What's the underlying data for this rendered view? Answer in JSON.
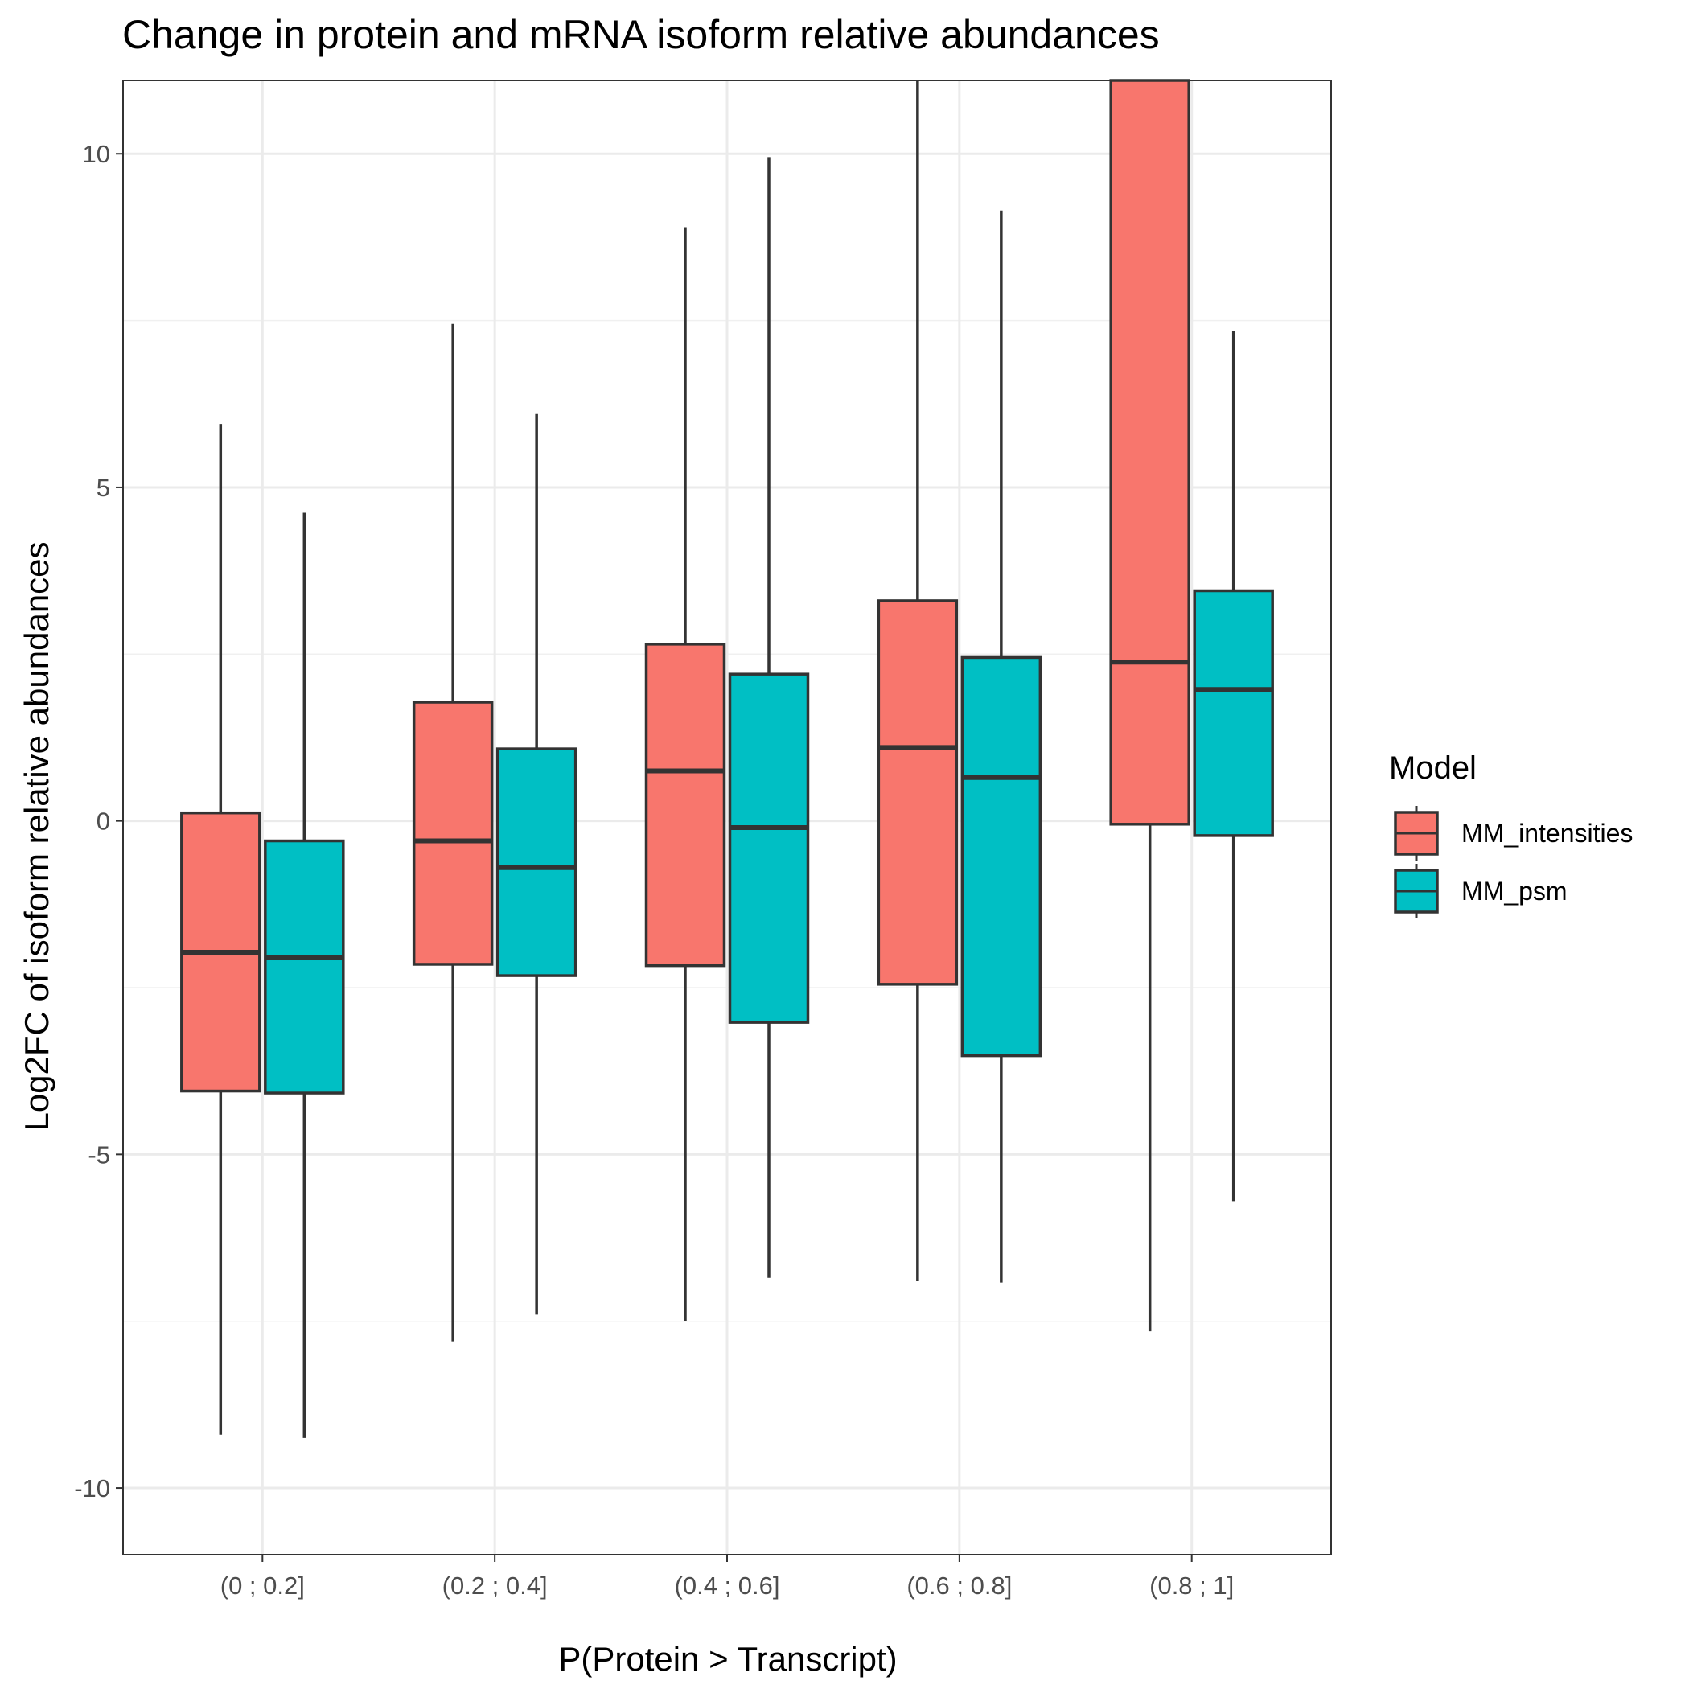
{
  "chart_data": {
    "type": "boxplot",
    "title": "Change in protein and mRNA isoform relative abundances",
    "xlabel": "P(Protein > Transcript)",
    "ylabel": "Log2FC of isoform relative abundances",
    "categories": [
      "(0 ; 0.2]",
      "(0.2 ; 0.4]",
      "(0.4 ; 0.6]",
      "(0.6 ; 0.8]",
      "(0.8 ; 1]"
    ],
    "ylim": [
      -11.0,
      11.1
    ],
    "yticks": [
      -10,
      -5,
      0,
      5,
      10
    ],
    "ytick_labels": [
      "-10",
      "-5",
      "0",
      "5",
      "10"
    ],
    "grid": true,
    "legend": {
      "title": "Model",
      "position": "right"
    },
    "series": [
      {
        "name": "MM_intensities",
        "color": "#F8766D",
        "boxes": [
          {
            "whisker_low": -9.2,
            "q1": -4.05,
            "median": -1.97,
            "q3": 0.12,
            "whisker_high": 5.95
          },
          {
            "whisker_low": -7.8,
            "q1": -2.15,
            "median": -0.3,
            "q3": 1.78,
            "whisker_high": 7.45
          },
          {
            "whisker_low": -7.5,
            "q1": -2.17,
            "median": 0.75,
            "q3": 2.65,
            "whisker_high": 8.9
          },
          {
            "whisker_low": -6.9,
            "q1": -2.45,
            "median": 1.1,
            "q3": 3.3,
            "whisker_high": 11.1
          },
          {
            "whisker_low": -7.65,
            "q1": -0.05,
            "median": 2.38,
            "q3": 11.1,
            "whisker_high": 11.1
          }
        ]
      },
      {
        "name": "MM_psm",
        "color": "#00BFC4",
        "boxes": [
          {
            "whisker_low": -9.25,
            "q1": -4.08,
            "median": -2.05,
            "q3": -0.3,
            "whisker_high": 4.62
          },
          {
            "whisker_low": -7.4,
            "q1": -2.32,
            "median": -0.7,
            "q3": 1.08,
            "whisker_high": 6.1
          },
          {
            "whisker_low": -6.85,
            "q1": -3.02,
            "median": -0.1,
            "q3": 2.2,
            "whisker_high": 9.95
          },
          {
            "whisker_low": -6.92,
            "q1": -3.52,
            "median": 0.65,
            "q3": 2.45,
            "whisker_high": 9.15
          },
          {
            "whisker_low": -5.7,
            "q1": -0.22,
            "median": 1.97,
            "q3": 3.45,
            "whisker_high": 7.35
          }
        ]
      }
    ]
  }
}
